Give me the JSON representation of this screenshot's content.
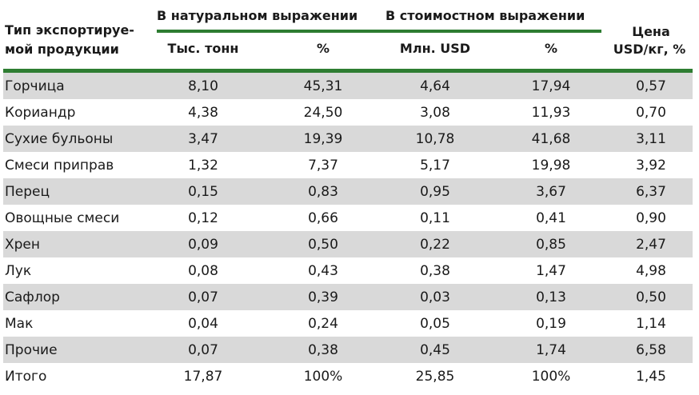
{
  "header": {
    "type_col": [
      "Тип экспортируе-",
      "мой продукции"
    ],
    "natural_group": "В натуральном выражении",
    "value_group": "В стоимостном выражении",
    "price_col": [
      "Цена",
      "USD/кг, %"
    ],
    "sub": {
      "tons": "Тыс. тонн",
      "pct1": "%",
      "usd": "Млн. USD",
      "pct2": "%"
    }
  },
  "rows": [
    {
      "name": "Горчица",
      "tons": "8,10",
      "pct1": "45,31",
      "usd": "4,64",
      "pct2": "17,94",
      "price": "0,57"
    },
    {
      "name": "Кориандр",
      "tons": "4,38",
      "pct1": "24,50",
      "usd": "3,08",
      "pct2": "11,93",
      "price": "0,70"
    },
    {
      "name": "Сухие бульоны",
      "tons": "3,47",
      "pct1": "19,39",
      "usd": "10,78",
      "pct2": "41,68",
      "price": "3,11"
    },
    {
      "name": "Смеси приправ",
      "tons": "1,32",
      "pct1": "7,37",
      "usd": "5,17",
      "pct2": "19,98",
      "price": "3,92"
    },
    {
      "name": "Перец",
      "tons": "0,15",
      "pct1": "0,83",
      "usd": "0,95",
      "pct2": "3,67",
      "price": "6,37"
    },
    {
      "name": "Овощные смеси",
      "tons": "0,12",
      "pct1": "0,66",
      "usd": "0,11",
      "pct2": "0,41",
      "price": "0,90"
    },
    {
      "name": "Хрен",
      "tons": "0,09",
      "pct1": "0,50",
      "usd": "0,22",
      "pct2": "0,85",
      "price": "2,47"
    },
    {
      "name": "Лук",
      "tons": "0,08",
      "pct1": "0,43",
      "usd": "0,38",
      "pct2": "1,47",
      "price": "4,98"
    },
    {
      "name": "Сафлор",
      "tons": "0,07",
      "pct1": "0,39",
      "usd": "0,03",
      "pct2": "0,13",
      "price": "0,50"
    },
    {
      "name": "Мак",
      "tons": "0,04",
      "pct1": "0,24",
      "usd": "0,05",
      "pct2": "0,19",
      "price": "1,14"
    },
    {
      "name": "Прочие",
      "tons": "0,07",
      "pct1": "0,38",
      "usd": "0,45",
      "pct2": "1,74",
      "price": "6,58"
    },
    {
      "name": "Итого",
      "tons": "17,87",
      "pct1": "100%",
      "usd": "25,85",
      "pct2": "100%",
      "price": "1,45"
    }
  ],
  "colors": {
    "accent_green": "#2e7d32",
    "row_shade": "#d9d9d9"
  }
}
